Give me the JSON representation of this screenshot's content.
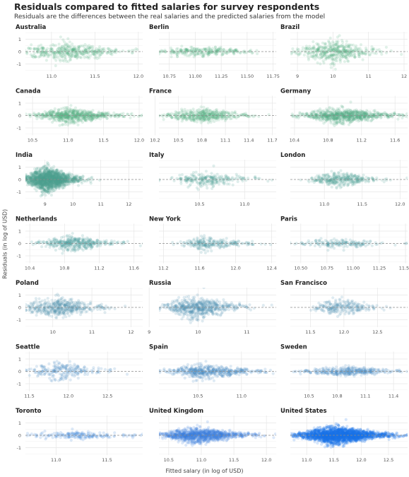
{
  "title": "Residuals compared to fitted salaries for survey respondents",
  "subtitle": "Residuals are the differences between the real salaries and the predicted salaries from the model",
  "chart_data": {
    "type": "scatter",
    "title": "Residuals compared to fitted salaries for survey respondents",
    "subtitle": "Residuals are the differences between the real salaries and the predicted salaries from the model",
    "xlabel": "Fitted salary (in log of USD)",
    "ylabel": "Residuals (in log of USD)",
    "ylim": [
      -1.6,
      1.6
    ],
    "y_ticks": [
      "1",
      "0",
      "-1"
    ],
    "reference_line": {
      "y": 0,
      "style": "dashed"
    },
    "grid": true,
    "facets": [
      {
        "name": "Australia",
        "xlim": [
          10.7,
          12.05
        ],
        "x_ticks": [
          "11.0",
          "11.5",
          "12.0"
        ],
        "n": 420,
        "center": 11.15,
        "spread": 0.28,
        "yspread": 0.38,
        "color": "#59b084"
      },
      {
        "name": "Berlin",
        "xlim": [
          10.65,
          11.78
        ],
        "x_ticks": [
          "10.75",
          "11.00",
          "11.25",
          "11.50",
          "11.75"
        ],
        "n": 260,
        "center": 11.05,
        "spread": 0.2,
        "yspread": 0.22,
        "color": "#59b084"
      },
      {
        "name": "Brazil",
        "xlim": [
          8.8,
          12.1
        ],
        "x_ticks": [
          "9",
          "10",
          "11",
          "12"
        ],
        "n": 420,
        "center": 10.0,
        "spread": 0.45,
        "yspread": 0.5,
        "color": "#59b084"
      },
      {
        "name": "Canada",
        "xlim": [
          10.4,
          12.05
        ],
        "x_ticks": [
          "10.5",
          "11.0",
          "11.5",
          "12.0"
        ],
        "n": 650,
        "center": 11.05,
        "spread": 0.27,
        "yspread": 0.3,
        "color": "#59b084"
      },
      {
        "name": "France",
        "xlim": [
          10.25,
          11.75
        ],
        "x_ticks": [
          "10.2",
          "10.5",
          "10.8",
          "11.1",
          "11.4",
          "11.7"
        ],
        "n": 450,
        "center": 10.8,
        "spread": 0.22,
        "yspread": 0.3,
        "color": "#59b084"
      },
      {
        "name": "Germany",
        "xlim": [
          10.35,
          11.75
        ],
        "x_ticks": [
          "10.4",
          "10.8",
          "11.2",
          "11.6"
        ],
        "n": 750,
        "center": 10.95,
        "spread": 0.25,
        "yspread": 0.3,
        "color": "#55aa87"
      },
      {
        "name": "India",
        "xlim": [
          8.3,
          12.5
        ],
        "x_ticks": [
          "9",
          "10",
          "11",
          "12"
        ],
        "n": 1600,
        "center": 9.1,
        "spread": 0.4,
        "yspread": 0.5,
        "color": "#4fa38f"
      },
      {
        "name": "Italy",
        "xlim": [
          10.05,
          11.35
        ],
        "x_ticks": [
          "10.5",
          "11.0"
        ],
        "n": 240,
        "center": 10.55,
        "spread": 0.22,
        "yspread": 0.3,
        "color": "#4b9e94"
      },
      {
        "name": "London",
        "xlim": [
          10.55,
          12.1
        ],
        "x_ticks": [
          "11.0",
          "11.5",
          "12.0"
        ],
        "n": 320,
        "center": 11.2,
        "spread": 0.2,
        "yspread": 0.3,
        "color": "#4b9e94"
      },
      {
        "name": "Netherlands",
        "xlim": [
          10.35,
          11.7
        ],
        "x_ticks": [
          "10.4",
          "10.8",
          "11.2",
          "11.6"
        ],
        "n": 380,
        "center": 10.9,
        "spread": 0.2,
        "yspread": 0.3,
        "color": "#4a9a99"
      },
      {
        "name": "New York",
        "xlim": [
          11.15,
          12.45
        ],
        "x_ticks": [
          "11.2",
          "11.6",
          "12.0",
          "12.4"
        ],
        "n": 230,
        "center": 11.7,
        "spread": 0.18,
        "yspread": 0.3,
        "color": "#4898a0"
      },
      {
        "name": "Paris",
        "xlim": [
          10.4,
          11.52
        ],
        "x_ticks": [
          "10.50",
          "10.75",
          "11.00",
          "11.25",
          "11.50"
        ],
        "n": 170,
        "center": 10.85,
        "spread": 0.18,
        "yspread": 0.22,
        "color": "#4898a0"
      },
      {
        "name": "Poland",
        "xlim": [
          9.3,
          12.3
        ],
        "x_ticks": [
          "10",
          "11",
          "12"
        ],
        "n": 450,
        "center": 10.1,
        "spread": 0.45,
        "yspread": 0.42,
        "color": "#4b92ae"
      },
      {
        "name": "Russia",
        "xlim": [
          9.2,
          11.6
        ],
        "x_ticks": [
          "9",
          "10",
          "11"
        ],
        "n": 560,
        "center": 9.95,
        "spread": 0.35,
        "yspread": 0.45,
        "color": "#4b90b2"
      },
      {
        "name": "San Francisco",
        "xlim": [
          11.2,
          12.95
        ],
        "x_ticks": [
          "11.5",
          "12.0",
          "12.5"
        ],
        "n": 230,
        "center": 11.95,
        "spread": 0.22,
        "yspread": 0.35,
        "color": "#4b90b2"
      },
      {
        "name": "Seattle",
        "xlim": [
          11.45,
          12.95
        ],
        "x_ticks": [
          "11.5",
          "12.0",
          "12.5"
        ],
        "n": 230,
        "center": 11.9,
        "spread": 0.22,
        "yspread": 0.38,
        "color": "#4688c4"
      },
      {
        "name": "Spain",
        "xlim": [
          10.05,
          11.4
        ],
        "x_ticks": [
          "10.5",
          "11.0"
        ],
        "n": 500,
        "center": 10.6,
        "spread": 0.25,
        "yspread": 0.3,
        "color": "#4688c4"
      },
      {
        "name": "Sweden",
        "xlim": [
          10.3,
          11.55
        ],
        "x_ticks": [
          "10.5",
          "10.8",
          "11.1",
          "11.4"
        ],
        "n": 360,
        "center": 10.9,
        "spread": 0.22,
        "yspread": 0.2,
        "color": "#4688c4"
      },
      {
        "name": "Toronto",
        "xlim": [
          10.7,
          11.85
        ],
        "x_ticks": [
          "11.0",
          "11.5"
        ],
        "n": 180,
        "center": 11.15,
        "spread": 0.22,
        "yspread": 0.2,
        "color": "#3f84d6"
      },
      {
        "name": "United Kingdom",
        "xlim": [
          10.35,
          12.15
        ],
        "x_ticks": [
          "10.5",
          "11.0",
          "11.5",
          "12.0"
        ],
        "n": 1100,
        "center": 10.95,
        "spread": 0.3,
        "yspread": 0.3,
        "color": "#3b80df"
      },
      {
        "name": "United States",
        "xlim": [
          10.7,
          12.85
        ],
        "x_ticks": [
          "11.0",
          "11.5",
          "12.0",
          "12.5"
        ],
        "n": 2600,
        "center": 11.55,
        "spread": 0.35,
        "yspread": 0.35,
        "color": "#1a73e8"
      }
    ]
  }
}
